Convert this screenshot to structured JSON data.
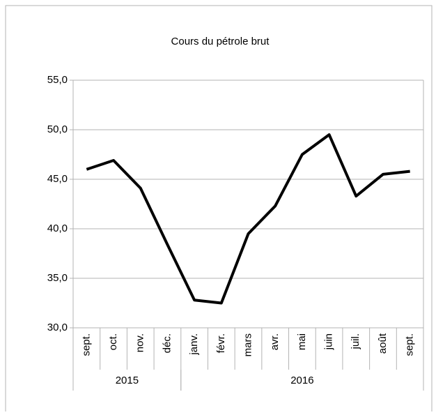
{
  "chart_data": {
    "type": "line",
    "title": "Cours du pétrole brut",
    "categories": [
      "sept.",
      "oct.",
      "nov.",
      "déc.",
      "janv.",
      "févr.",
      "mars",
      "avr.",
      "mai",
      "juin",
      "juil.",
      "août",
      "sept."
    ],
    "x_groups": [
      {
        "label": "2015",
        "count": 4
      },
      {
        "label": "2016",
        "count": 9
      }
    ],
    "values": [
      46.0,
      46.9,
      44.1,
      38.4,
      32.8,
      32.5,
      39.5,
      42.3,
      47.5,
      49.5,
      43.3,
      45.5,
      45.8
    ],
    "color": "#000000",
    "ylim": [
      30,
      55
    ],
    "yticks": [
      {
        "value": 30,
        "label": "30,0"
      },
      {
        "value": 35,
        "label": "35,0"
      },
      {
        "value": 40,
        "label": "40,0"
      },
      {
        "value": 45,
        "label": "45,0"
      },
      {
        "value": 50,
        "label": "50,0"
      },
      {
        "value": 55,
        "label": "55,0"
      }
    ],
    "grid": true
  }
}
